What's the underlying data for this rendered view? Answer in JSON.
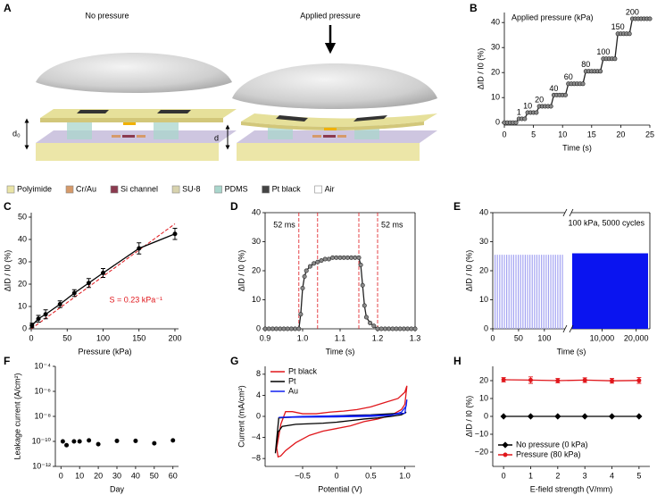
{
  "diagram": {
    "panel": "A",
    "left_label": "No pressure",
    "right_label": "Applied pressure",
    "gap_unpressed": "d₀",
    "gap_pressed": "d",
    "materials": [
      {
        "name": "Polyimide",
        "color": "#e9e4a6"
      },
      {
        "name": "Cr/Au",
        "color": "#d69a6a"
      },
      {
        "name": "Si channel",
        "color": "#8b3a4f"
      },
      {
        "name": "SU-8",
        "color": "#d8d3ae"
      },
      {
        "name": "PDMS",
        "color": "#a9d6cc"
      },
      {
        "name": "Pt black",
        "color": "#444444"
      },
      {
        "name": "Air",
        "color": "#ffffff"
      }
    ]
  },
  "chart_data": [
    {
      "panel": "B",
      "type": "line",
      "xlabel": "Time (s)",
      "ylabel": "ΔID / I0 (%)",
      "xlim": [
        0,
        25
      ],
      "ylim": [
        -1,
        44
      ],
      "xticks": [
        0,
        5,
        10,
        15,
        20,
        25
      ],
      "yticks": [
        0,
        10,
        20,
        30,
        40
      ],
      "annotation": "Applied pressure (kPa)",
      "annotation_pos": "top-left",
      "step_labels": [
        1,
        10,
        20,
        40,
        60,
        80,
        100,
        150,
        200
      ],
      "x": [
        0,
        0.5,
        1,
        1.5,
        2,
        2.5,
        3,
        3.5,
        4,
        4.5,
        5,
        5.5,
        6,
        6.5,
        7,
        7.5,
        8,
        8.5,
        9,
        9.5,
        10,
        10.5,
        11,
        11.5,
        12,
        12.5,
        13,
        13.5,
        14,
        14.5,
        15,
        15.5,
        16,
        16.5,
        17,
        17.5,
        18,
        18.5,
        19,
        19.5,
        20,
        20.5,
        21,
        21.5,
        22,
        22.5,
        23,
        23.5,
        24,
        24.5,
        25
      ],
      "series": [
        {
          "color": "#222222",
          "marker": "circle",
          "marker_fill": "#8a8a8a",
          "values": [
            0,
            0,
            0,
            0,
            0,
            1.5,
            1.5,
            1.5,
            4,
            4,
            4,
            4,
            6.5,
            6.5,
            6.5,
            6.5,
            6.5,
            11,
            11,
            11,
            11,
            11,
            15.5,
            15.5,
            15.5,
            15.5,
            15.5,
            15.5,
            20.5,
            20.5,
            20.5,
            20.5,
            20.5,
            20.5,
            25.5,
            25.5,
            25.5,
            25.5,
            25.5,
            35.5,
            35.5,
            35.5,
            35.5,
            35.5,
            41.5,
            41.5,
            41.5,
            41.5,
            41.5,
            41.5,
            41.5
          ]
        }
      ]
    },
    {
      "panel": "C",
      "type": "line",
      "xlabel": "Pressure (kPa)",
      "ylabel": "ΔID / I0 (%)",
      "xlim": [
        0,
        205
      ],
      "ylim": [
        0,
        52
      ],
      "xticks": [
        0,
        50,
        100,
        150,
        200
      ],
      "yticks": [
        0,
        10,
        20,
        30,
        40,
        50
      ],
      "annotation": "S = 0.23 kPa⁻¹",
      "annotation_pos": "bottom-right",
      "annotation_color": "#e0161b",
      "fit_x": [
        0,
        200
      ],
      "fit_values": [
        0,
        47
      ],
      "fit_color": "#e0161b",
      "x": [
        1,
        10,
        20,
        40,
        60,
        80,
        100,
        150,
        200
      ],
      "series": [
        {
          "color": "#000000",
          "marker": "circle",
          "marker_fill": "#000000",
          "values": [
            1.5,
            4.5,
            6.5,
            11,
            16,
            20.5,
            25,
            36,
            42.5
          ],
          "errors": [
            1,
            1.5,
            2,
            1.5,
            1.5,
            2,
            2,
            2.5,
            2.5
          ]
        }
      ]
    },
    {
      "panel": "D",
      "type": "line",
      "frame": true,
      "xlabel": "Time (s)",
      "ylabel": "ΔID / I0 (%)",
      "xlim": [
        0.9,
        1.3
      ],
      "ylim": [
        0,
        40
      ],
      "xticks": [
        0.9,
        {
          "value": 1.0,
          "label": "1.0"
        },
        1.1,
        1.2,
        1.3
      ],
      "yticks": [
        0,
        10,
        20,
        30,
        40
      ],
      "vlines": [
        0.99,
        1.04,
        1.15,
        1.2
      ],
      "vline_color": "#e0161b",
      "annotations": [
        "52 ms",
        "52 ms"
      ],
      "x": [
        0.9,
        0.91,
        0.92,
        0.93,
        0.94,
        0.95,
        0.96,
        0.97,
        0.98,
        0.99,
        0.995,
        1.0,
        1.005,
        1.01,
        1.02,
        1.03,
        1.04,
        1.05,
        1.06,
        1.07,
        1.08,
        1.09,
        1.1,
        1.11,
        1.12,
        1.13,
        1.14,
        1.15,
        1.155,
        1.16,
        1.165,
        1.17,
        1.18,
        1.19,
        1.2,
        1.21,
        1.22,
        1.23,
        1.24,
        1.25,
        1.26,
        1.27,
        1.28,
        1.29,
        1.3
      ],
      "series": [
        {
          "color": "#222222",
          "marker": "circle",
          "marker_fill": "#8a8a8a",
          "values": [
            0,
            0,
            0,
            0,
            0,
            0,
            0,
            0,
            0,
            0,
            5,
            14,
            18,
            20,
            21.5,
            22.5,
            23,
            23.5,
            24,
            24,
            24.5,
            24.5,
            24.5,
            24.5,
            24.5,
            24.5,
            24.5,
            24.5,
            22,
            15,
            8,
            4,
            2,
            1,
            0,
            0,
            0,
            0,
            0,
            0,
            0,
            0,
            0,
            0,
            0
          ]
        }
      ]
    },
    {
      "panel": "E",
      "type": "pulse",
      "frame": true,
      "xlabel": "Time (s)",
      "ylabel": "ΔID / I0 (%)",
      "ylim": [
        0,
        40
      ],
      "yticks": [
        0,
        10,
        20,
        30,
        40
      ],
      "annotation": "100 kPa, 5000 cycles",
      "annotation_pos": "top-right",
      "period": 4.5,
      "segments": [
        {
          "xlim": [
            0,
            140
          ],
          "xticks": [
            0,
            50,
            100
          ],
          "peak": 25.5,
          "color": "#a3a3f2"
        },
        {
          "xlim": [
            1000,
            24000
          ],
          "xticks": [
            {
              "value": 10000,
              "label": "10,000"
            },
            {
              "value": 20000,
              "label": "20,000"
            }
          ],
          "peak": 26,
          "color": "#0a14f0"
        }
      ]
    },
    {
      "panel": "F",
      "type": "scatter",
      "yscale": "log",
      "xlabel": "Day",
      "ylabel": "Leakage current (A/cm²)",
      "xlim": [
        -3,
        63
      ],
      "ylim": [
        1e-12,
        0.0001
      ],
      "xticks": [
        0,
        10,
        20,
        30,
        40,
        50,
        60
      ],
      "yticks": [
        {
          "value": 1e-12,
          "label": "10⁻¹²"
        },
        {
          "value": 1e-10,
          "label": "10⁻¹⁰"
        },
        {
          "value": 1e-08,
          "label": "10⁻⁸"
        },
        {
          "value": 1e-06,
          "label": "10⁻⁶"
        },
        {
          "value": 0.0001,
          "label": "10⁻⁴"
        }
      ],
      "x": [
        1,
        3,
        7,
        10,
        15,
        20,
        30,
        40,
        50,
        60
      ],
      "series": [
        {
          "color": "#000000",
          "marker": "circle",
          "marker_fill": "#000000",
          "values": [
            1e-10,
            5e-11,
            1e-10,
            1e-10,
            1.2e-10,
            6e-11,
            1.1e-10,
            1.1e-10,
            7e-11,
            1.2e-10
          ]
        }
      ]
    },
    {
      "panel": "G",
      "type": "line",
      "xlabel": "Potential (V)",
      "ylabel": "Current (mA/cm²)",
      "xlim": [
        -1.05,
        1.15
      ],
      "ylim": [
        -9.5,
        9.5
      ],
      "xticks": [
        {
          "value": -0.5,
          "label": "−0.5"
        },
        0,
        0.5,
        {
          "value": 1.0,
          "label": "1.0"
        }
      ],
      "yticks": [
        {
          "value": -8,
          "label": "−8"
        },
        {
          "value": -4,
          "label": "−4"
        },
        0,
        4,
        8
      ],
      "legend": "top-left",
      "series": [
        {
          "name": "Pt black",
          "color": "#e0161b",
          "x": [
            -0.88,
            -0.86,
            -0.82,
            -0.75,
            -0.6,
            -0.4,
            -0.2,
            0,
            0.2,
            0.4,
            0.6,
            0.8,
            0.95,
            1.0,
            1.03,
            1.0,
            0.9,
            0.7,
            0.5,
            0.3,
            0.1,
            -0.1,
            -0.3,
            -0.5,
            -0.65,
            -0.75,
            -0.82,
            -0.88
          ],
          "values": [
            -6,
            -7.7,
            -7.5,
            -6.5,
            -5,
            -3.6,
            -2.8,
            -2.3,
            -1.8,
            -1.0,
            -0.5,
            0.2,
            1.3,
            2.3,
            5.8,
            4.6,
            3.4,
            2.6,
            1.8,
            1.3,
            1.0,
            0.8,
            0.5,
            0.5,
            0.9,
            0.9,
            -1.5,
            -6
          ]
        },
        {
          "name": "Pt",
          "color": "#000000",
          "x": [
            -0.9,
            -0.86,
            -0.8,
            -0.6,
            -0.4,
            -0.2,
            0,
            0.2,
            0.4,
            0.6,
            0.8,
            0.95,
            1.02,
            1.0,
            0.8,
            0.5,
            0.2,
            0,
            -0.3,
            -0.6,
            -0.85,
            -0.9
          ],
          "values": [
            -7,
            -3,
            -1.9,
            -1.5,
            -1.4,
            -1.3,
            -1.1,
            -0.8,
            -0.5,
            -0.3,
            0,
            0.3,
            0.8,
            0.6,
            0.5,
            0.3,
            0.2,
            0.1,
            0,
            -0.1,
            -0.3,
            -7
          ]
        },
        {
          "name": "Au",
          "color": "#1020f0",
          "x": [
            -0.85,
            -0.5,
            0,
            0.5,
            0.8,
            0.95,
            1.02,
            1.03,
            1.0,
            0.8,
            0.5,
            0,
            -0.5,
            -0.85
          ],
          "values": [
            -0.2,
            -0.15,
            -0.1,
            0,
            0.2,
            0.8,
            2,
            3.2,
            0.6,
            0.3,
            0.2,
            0.1,
            0,
            -0.2
          ]
        }
      ]
    },
    {
      "panel": "H",
      "type": "line",
      "xlabel": "E-field strength (V/mm)",
      "ylabel": "ΔID / I0 (%)",
      "xlim": [
        -0.4,
        5.4
      ],
      "ylim": [
        -28,
        28
      ],
      "xticks": [
        0,
        1,
        2,
        3,
        4,
        5
      ],
      "yticks": [
        {
          "value": -20,
          "label": "−20"
        },
        {
          "value": -10,
          "label": "−10"
        },
        0,
        10,
        20
      ],
      "legend": "bottom-left",
      "x": [
        0,
        1,
        2,
        3,
        4,
        5
      ],
      "series": [
        {
          "name": "No pressure (0 kPa)",
          "color": "#000000",
          "marker": "diamond",
          "marker_fill": "#000000",
          "values": [
            0,
            0,
            0,
            0,
            0,
            0
          ]
        },
        {
          "name": "Pressure (80 kPa)",
          "color": "#e0161b",
          "marker": "circle",
          "marker_fill": "#e0161b",
          "values": [
            20.5,
            20.3,
            20,
            20.3,
            19.9,
            20.1
          ],
          "errors": [
            1.2,
            1.8,
            1.2,
            1.3,
            1.3,
            1.6
          ]
        }
      ]
    }
  ]
}
